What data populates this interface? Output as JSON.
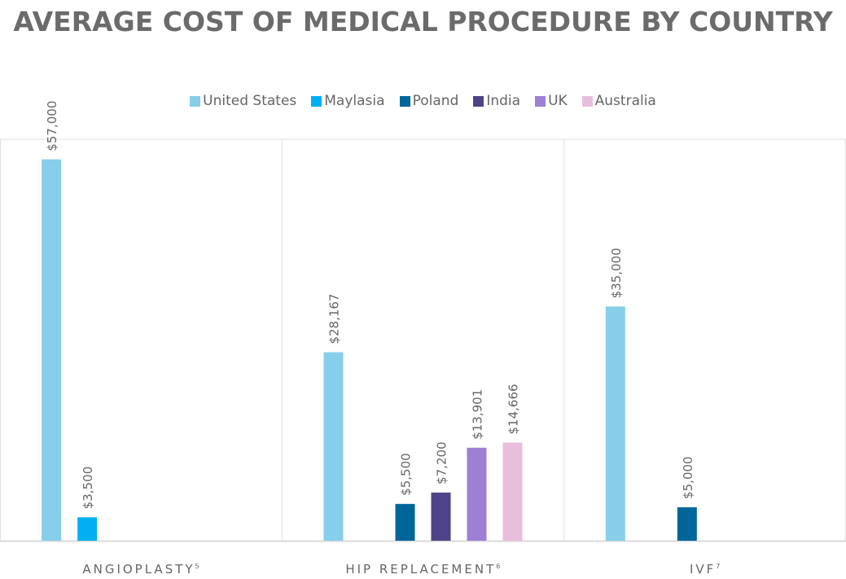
{
  "chart_data": {
    "type": "bar",
    "title": "AVERAGE COST OF MEDICAL PROCEDURE BY COUNTRY",
    "categories": [
      {
        "label": "ANGIOPLASTY",
        "footnote": "5"
      },
      {
        "label": "HIP REPLACEMENT",
        "footnote": "6"
      },
      {
        "label": "IVF",
        "footnote": "7"
      }
    ],
    "series": [
      {
        "name": "United States",
        "color": "#87ceeb",
        "values": [
          57000,
          28167,
          35000
        ],
        "labels": [
          "$57,000",
          "$28,167",
          "$35,000"
        ]
      },
      {
        "name": "Maylasia",
        "color": "#00b0f0",
        "values": [
          3500,
          null,
          null
        ],
        "labels": [
          "$3,500",
          null,
          null
        ]
      },
      {
        "name": "Poland",
        "color": "#006699",
        "values": [
          null,
          5500,
          5000
        ],
        "labels": [
          null,
          "$5,500",
          "$5,000"
        ]
      },
      {
        "name": "India",
        "color": "#4f4387",
        "values": [
          null,
          7200,
          null
        ],
        "labels": [
          null,
          "$7,200",
          null
        ]
      },
      {
        "name": "UK",
        "color": "#9d7fd4",
        "values": [
          null,
          13901,
          null
        ],
        "labels": [
          null,
          "$13,901",
          null
        ]
      },
      {
        "name": "Australia",
        "color": "#e8bedc",
        "values": [
          null,
          14666,
          null
        ],
        "labels": [
          null,
          "$14,666",
          null
        ]
      }
    ],
    "ylim": [
      0,
      60000
    ],
    "xlabel": "",
    "ylabel": "",
    "legend": "top",
    "grid": "vertical category separators"
  }
}
